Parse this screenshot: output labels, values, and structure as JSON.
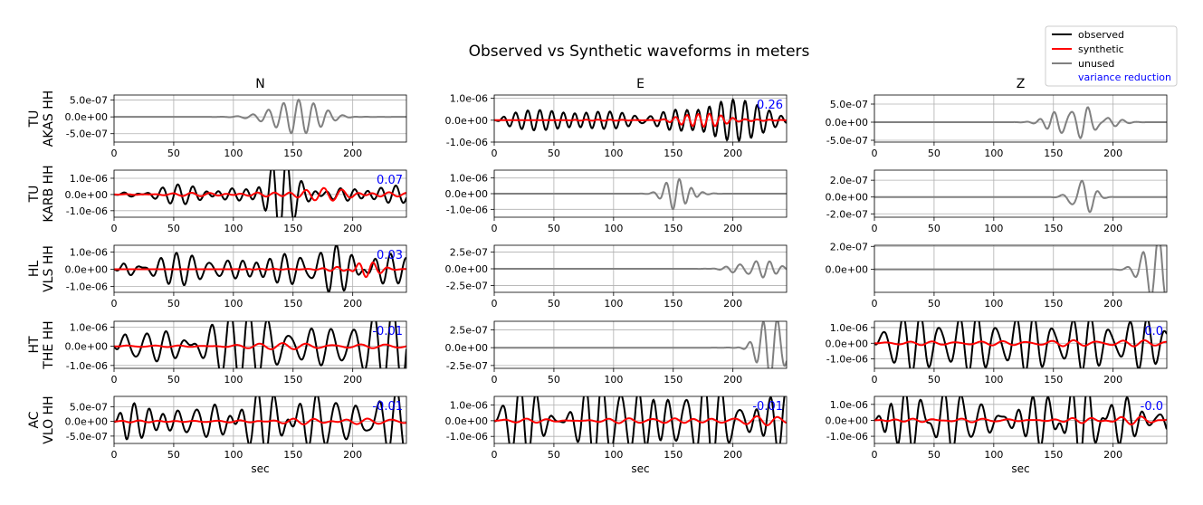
{
  "title": "Observed vs Synthetic waveforms in meters",
  "legend": {
    "placement": "top-right",
    "entries": [
      {
        "label": "observed",
        "color": "#000000"
      },
      {
        "label": "synthetic",
        "color": "#ff0000"
      },
      {
        "label": "unused",
        "color": "#808080"
      },
      {
        "label": "variance reduction",
        "color": "#0000ff"
      }
    ]
  },
  "colors": {
    "observed": "#000000",
    "synthetic": "#ff0000",
    "unused": "#808080",
    "vr": "#0000ff",
    "grid": "#b0b0b0"
  },
  "columns": [
    "N",
    "E",
    "Z"
  ],
  "x_label": "sec",
  "x_ticks": [
    0,
    50,
    100,
    150,
    200
  ],
  "stations": [
    {
      "label_line1": "TU",
      "label_line2": "AKAS HH"
    },
    {
      "label_line1": "TU",
      "label_line2": "KARB HH"
    },
    {
      "label_line1": "HL",
      "label_line2": "VLS HH"
    },
    {
      "label_line1": "HT",
      "label_line2": "THE HH"
    },
    {
      "label_line1": "AC",
      "label_line2": "VLO HH"
    }
  ],
  "chart_data": {
    "type": "line",
    "xlim": [
      0,
      245
    ],
    "panels": [
      {
        "station": "TU AKAS HH",
        "component": "N",
        "yticks": [
          "5.0e-07",
          "0.0e+00",
          "-5.0e-07"
        ],
        "yvals": [
          5e-07,
          0,
          -5e-07
        ],
        "ylim": [
          -7.5e-07,
          6.5e-07
        ],
        "used": false,
        "vr": "",
        "wave": {
          "amp": 6.2e-07,
          "start": 80,
          "peak": 155,
          "width": 30,
          "freq": 0.075,
          "seed": 1
        },
        "syn": null
      },
      {
        "station": "TU AKAS HH",
        "component": "E",
        "yticks": [
          "1.0e-06",
          "0.0e+00",
          "-1.0e-06"
        ],
        "yvals": [
          1e-06,
          0,
          -1e-06
        ],
        "ylim": [
          -1e-06,
          1.15e-06
        ],
        "used": true,
        "vr": "0.26",
        "wave": {
          "amp": 1e-06,
          "start": 0,
          "peak": 170,
          "width": 50,
          "freq": 0.095,
          "seed": 2,
          "base": 0.45
        },
        "syn": {
          "amp": 6e-07,
          "start": 60,
          "peak": 170,
          "width": 20,
          "freq": 0.095,
          "seed": 2,
          "base": 0.05
        }
      },
      {
        "station": "TU AKAS HH",
        "component": "Z",
        "yticks": [
          "5.0e-07",
          "0.0e+00",
          "-5.0e-07"
        ],
        "yvals": [
          5e-07,
          0,
          -5e-07
        ],
        "ylim": [
          -5.5e-07,
          7.5e-07
        ],
        "used": false,
        "vr": "",
        "wave": {
          "amp": 6.5e-07,
          "start": 80,
          "peak": 172,
          "width": 22,
          "freq": 0.08,
          "seed": 3
        },
        "syn": null
      },
      {
        "station": "TU KARB HH",
        "component": "N",
        "yticks": [
          "1.0e-06",
          "0.0e+00",
          "-1.0e-06"
        ],
        "yvals": [
          1e-06,
          0,
          -1e-06
        ],
        "ylim": [
          -1.4e-06,
          1.5e-06
        ],
        "used": true,
        "vr": "0.07",
        "wave": {
          "amp": 1.45e-06,
          "start": 0,
          "peak": 138,
          "width": 14,
          "freq": 0.085,
          "seed": 4,
          "base": 0.25
        },
        "syn": {
          "amp": 2e-07,
          "start": 0,
          "peak": 180,
          "width": 60,
          "freq": 0.07,
          "seed": 4,
          "base": 0.3
        }
      },
      {
        "station": "TU KARB HH",
        "component": "E",
        "yticks": [
          "1.0e-06",
          "0.0e+00",
          "-1.0e-06"
        ],
        "yvals": [
          1e-06,
          0,
          -1e-06
        ],
        "ylim": [
          -1.5e-06,
          1.5e-06
        ],
        "used": false,
        "vr": "",
        "wave": {
          "amp": 1.45e-06,
          "start": 100,
          "peak": 157,
          "width": 15,
          "freq": 0.08,
          "seed": 5
        },
        "syn": null
      },
      {
        "station": "TU KARB HH",
        "component": "Z",
        "yticks": [
          "2.0e-07",
          "0.0e+00",
          "-2.0e-07"
        ],
        "yvals": [
          2e-07,
          0,
          -2e-07
        ],
        "ylim": [
          -2.4e-07,
          3.2e-07
        ],
        "used": false,
        "vr": "",
        "wave": {
          "amp": 3e-07,
          "start": 90,
          "peak": 173,
          "width": 12,
          "freq": 0.08,
          "seed": 6
        },
        "syn": null
      },
      {
        "station": "HL VLS HH",
        "component": "N",
        "yticks": [
          "1.0e-06",
          "0.0e+00",
          "-1.0e-06"
        ],
        "yvals": [
          1e-06,
          0,
          -1e-06
        ],
        "ylim": [
          -1.35e-06,
          1.4e-06
        ],
        "used": true,
        "vr": "0.03",
        "wave": {
          "amp": 1.35e-06,
          "start": 0,
          "peak": 180,
          "width": 40,
          "freq": 0.075,
          "seed": 7,
          "base": 0.45
        },
        "syn": {
          "amp": 5e-07,
          "start": 100,
          "peak": 205,
          "width": 18,
          "freq": 0.08,
          "seed": 7,
          "base": 0.05
        }
      },
      {
        "station": "HL VLS HH",
        "component": "E",
        "yticks": [
          "2.5e-07",
          "0.0e+00",
          "-2.5e-07"
        ],
        "yvals": [
          2.5e-07,
          0,
          -2.5e-07
        ],
        "ylim": [
          -3.5e-07,
          3.5e-07
        ],
        "used": false,
        "vr": "",
        "wave": {
          "amp": 3.3e-07,
          "start": 90,
          "peak": 215,
          "width": 20,
          "freq": 0.085,
          "seed": 8
        },
        "syn": null
      },
      {
        "station": "HL VLS HH",
        "component": "Z",
        "yticks": [
          "2.0e-07",
          "0.0e+00"
        ],
        "yvals": [
          2e-07,
          0
        ],
        "ylim": [
          -2e-07,
          2.1e-07
        ],
        "used": false,
        "vr": "",
        "wave": {
          "amp": 2e-07,
          "start": 100,
          "peak": 240,
          "width": 18,
          "freq": 0.08,
          "seed": 9
        },
        "syn": null
      },
      {
        "station": "HT THE HH",
        "component": "N",
        "yticks": [
          "1.0e-06",
          "0.0e+00",
          "-1.0e-06"
        ],
        "yvals": [
          1e-06,
          0,
          -1e-06
        ],
        "ylim": [
          -1.15e-06,
          1.3e-06
        ],
        "used": true,
        "vr": "-0.01",
        "wave": {
          "amp": 1.15e-06,
          "start": 0,
          "peak": 120,
          "width": 200,
          "freq": 0.075,
          "seed": 10,
          "base": 0.9
        },
        "syn": {
          "amp": 1.2e-07,
          "start": 0,
          "peak": 200,
          "width": 80,
          "freq": 0.06,
          "seed": 10,
          "base": 0.5
        }
      },
      {
        "station": "HT THE HH",
        "component": "E",
        "yticks": [
          "2.5e-07",
          "0.0e+00",
          "-2.5e-07"
        ],
        "yvals": [
          2.5e-07,
          0,
          -2.5e-07
        ],
        "ylim": [
          -2.9e-07,
          3.7e-07
        ],
        "used": false,
        "vr": "",
        "wave": {
          "amp": 3.2e-07,
          "start": 120,
          "peak": 235,
          "width": 18,
          "freq": 0.085,
          "seed": 11
        },
        "syn": null
      },
      {
        "station": "HT THE HH",
        "component": "Z",
        "yticks": [
          "1.0e-06",
          "0.0e+00",
          "-1.0e-06"
        ],
        "yvals": [
          1e-06,
          0,
          -1e-06
        ],
        "ylim": [
          -1.6e-06,
          1.4e-06
        ],
        "used": true,
        "vr": "0.0",
        "wave": {
          "amp": 1.35e-06,
          "start": 0,
          "peak": 140,
          "width": 200,
          "freq": 0.075,
          "seed": 12,
          "base": 0.9
        },
        "syn": {
          "amp": 1.5e-07,
          "start": 0,
          "peak": 200,
          "width": 80,
          "freq": 0.06,
          "seed": 12,
          "base": 0.5
        }
      },
      {
        "station": "AC VLO HH",
        "component": "N",
        "yticks": [
          "5.0e-07",
          "0.0e+00",
          "-5.0e-07"
        ],
        "yvals": [
          5e-07,
          0,
          -5e-07
        ],
        "ylim": [
          -7.5e-07,
          8.5e-07
        ],
        "used": true,
        "vr": "-0.01",
        "wave": {
          "amp": 7.8e-07,
          "start": 0,
          "peak": 150,
          "width": 200,
          "freq": 0.075,
          "seed": 13,
          "base": 0.9
        },
        "syn": {
          "amp": 8e-08,
          "start": 0,
          "peak": 200,
          "width": 80,
          "freq": 0.06,
          "seed": 13,
          "base": 0.5
        }
      },
      {
        "station": "AC VLO HH",
        "component": "E",
        "yticks": [
          "1.0e-06",
          "0.0e+00",
          "-1.0e-06"
        ],
        "yvals": [
          1e-06,
          0,
          -1e-06
        ],
        "ylim": [
          -1.45e-06,
          1.55e-06
        ],
        "used": true,
        "vr": "-0.01",
        "wave": {
          "amp": 1.45e-06,
          "start": 0,
          "peak": 110,
          "width": 200,
          "freq": 0.075,
          "seed": 14,
          "base": 0.9
        },
        "syn": {
          "amp": 1.5e-07,
          "start": 0,
          "peak": 220,
          "width": 80,
          "freq": 0.06,
          "seed": 14,
          "base": 0.5
        }
      },
      {
        "station": "AC VLO HH",
        "component": "Z",
        "yticks": [
          "1.0e-06",
          "0.0e+00",
          "-1.0e-06"
        ],
        "yvals": [
          1e-06,
          0,
          -1e-06
        ],
        "ylim": [
          -1.45e-06,
          1.5e-06
        ],
        "used": true,
        "vr": "-0.0",
        "wave": {
          "amp": 1.45e-06,
          "start": 0,
          "peak": 120,
          "width": 200,
          "freq": 0.075,
          "seed": 15,
          "base": 0.9
        },
        "syn": {
          "amp": 1.5e-07,
          "start": 0,
          "peak": 200,
          "width": 80,
          "freq": 0.06,
          "seed": 15,
          "base": 0.5
        }
      }
    ]
  }
}
